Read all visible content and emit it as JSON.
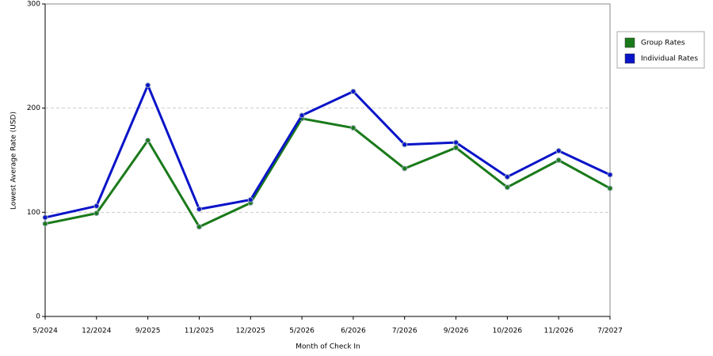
{
  "chart_data": {
    "type": "line",
    "x_label": "Month of Check In",
    "y_label": "Lowest Average Rate (USD)",
    "categories": [
      "5/2024",
      "12/2024",
      "9/2025",
      "11/2025",
      "12/2025",
      "5/2026",
      "6/2026",
      "7/2026",
      "9/2026",
      "10/2026",
      "11/2026",
      "7/2027"
    ],
    "series": [
      {
        "name": "Group Rates",
        "color": "#1a7a1a",
        "values": [
          89,
          99,
          169,
          86,
          109,
          190,
          181,
          142,
          162,
          124,
          150,
          123
        ]
      },
      {
        "name": "Individual Rates",
        "color": "#0a14c8",
        "values": [
          95,
          106,
          222,
          103,
          112,
          193,
          216,
          165,
          167,
          134,
          159,
          136
        ]
      }
    ],
    "ylim": [
      0,
      300
    ],
    "yticks": [
      0,
      100,
      200,
      300
    ],
    "grid": true,
    "legend": "right"
  }
}
